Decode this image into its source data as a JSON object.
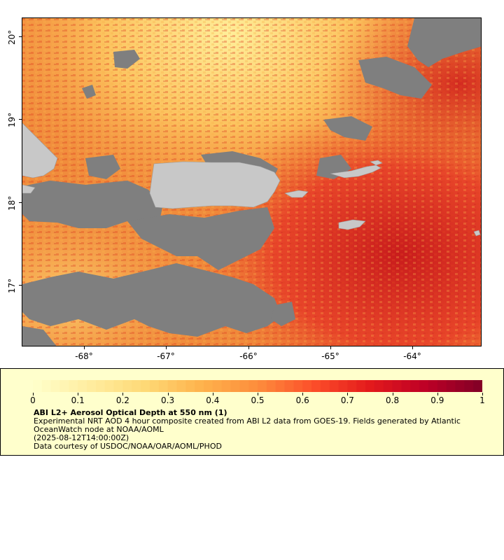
{
  "map": {
    "lat_labels": [
      "20°",
      "19°",
      "18°",
      "17°"
    ],
    "lon_labels": [
      "-68°",
      "-67°",
      "-66°",
      "-65°",
      "-64°"
    ],
    "colors": {
      "land": "#c8c8c8",
      "nodata": "#7f7f7f",
      "frame": "#000000"
    },
    "land_features": [
      "puerto-rico",
      "hispaniola-east",
      "vieques",
      "st-croix",
      "virgin-islands"
    ]
  },
  "legend": {
    "colorbar_labels": [
      "0",
      "0.1",
      "0.2",
      "0.3",
      "0.4",
      "0.5",
      "0.6",
      "0.7",
      "0.8",
      "0.9",
      "1"
    ],
    "colorbar_range": [
      0,
      1
    ],
    "colormap": [
      "#ffffcc",
      "#ffeda0",
      "#fed976",
      "#feb24c",
      "#fd8d3c",
      "#fc4e2a",
      "#e31a1c",
      "#bd0026",
      "#800026"
    ],
    "title": "ABI L2+ Aerosol Optical Depth at 550 nm (1)",
    "line1": "Experimental NRT AOD 4 hour composite created from ABI L2 data from GOES-19. Fields generated by Atlantic",
    "line2": "OceanWatch node at NOAA/AOML",
    "line3": "(2025-08-12T14:00:00Z)",
    "line4": "Data courtesy of USDOC/NOAA/OAR/AOML/PHOD",
    "background": "#ffffcc"
  }
}
